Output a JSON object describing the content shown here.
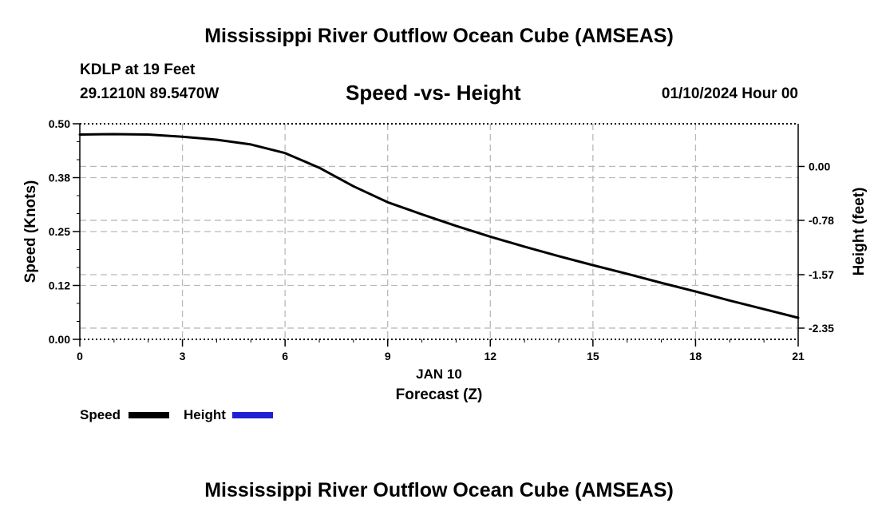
{
  "header": {
    "title": "Mississippi River Outflow Ocean Cube (AMSEAS)",
    "station": "KDLP at 19 Feet",
    "coords": "29.1210N  89.5470W",
    "subtitle": "Speed -vs- Height",
    "datetime": "01/10/2024 Hour 00"
  },
  "footer": {
    "title": "Mississippi River Outflow Ocean Cube (AMSEAS)"
  },
  "legend": {
    "speed_label": "Speed",
    "height_label": "Height",
    "speed_color": "#000000",
    "height_color": "#1f1fd6"
  },
  "chart_data": {
    "type": "line",
    "title": "Speed -vs- Height",
    "xlabel": "Forecast (Z)",
    "xsublabel": "JAN 10",
    "ylabel": "Speed (Knots)",
    "y2label": "Height (feet)",
    "xlim": [
      0,
      21
    ],
    "ylim": [
      0,
      0.5
    ],
    "x_ticks": [
      0,
      3,
      6,
      9,
      12,
      15,
      18,
      21
    ],
    "y_ticks": [
      0.0,
      0.125,
      0.25,
      0.375,
      0.5
    ],
    "y_tick_labels": [
      "0.00",
      "0.12",
      "0.25",
      "0.38",
      "0.50"
    ],
    "y2_ticks": [
      0.0,
      -0.78,
      -1.57,
      -2.35
    ],
    "y2_tick_labels": [
      "0.00",
      "-0.78",
      "-1.57",
      "-2.35"
    ],
    "y2_tick_positions": [
      0.401,
      0.276,
      0.15,
      0.026
    ],
    "grid": true,
    "series": [
      {
        "name": "Speed",
        "x": [
          0,
          1,
          2,
          3,
          4,
          5,
          6,
          7,
          8,
          9,
          10,
          11,
          12,
          13,
          14,
          15,
          16,
          17,
          18,
          19,
          20,
          21
        ],
        "values": [
          0.475,
          0.476,
          0.475,
          0.47,
          0.463,
          0.452,
          0.432,
          0.398,
          0.355,
          0.318,
          0.29,
          0.263,
          0.238,
          0.215,
          0.193,
          0.172,
          0.152,
          0.131,
          0.111,
          0.09,
          0.07,
          0.05
        ]
      },
      {
        "name": "Height",
        "x": [],
        "values": []
      }
    ]
  }
}
